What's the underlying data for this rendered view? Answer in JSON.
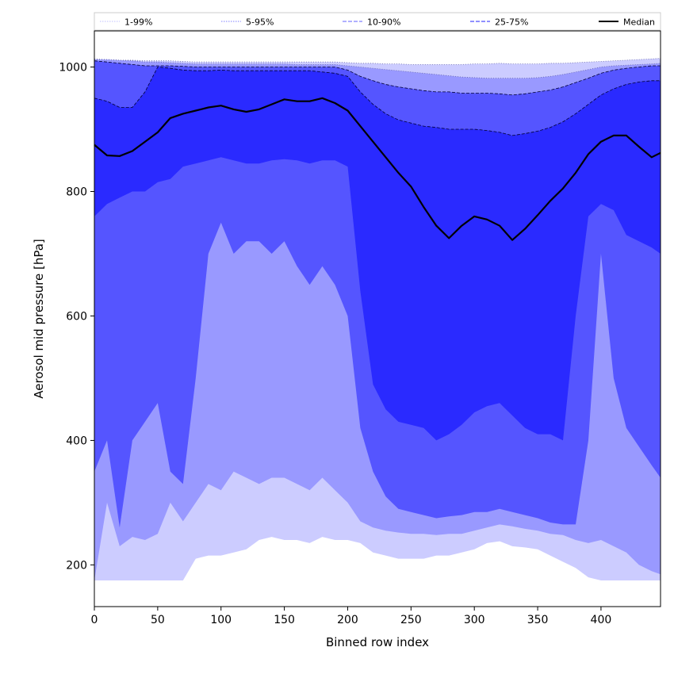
{
  "chart_data": {
    "type": "area",
    "xlabel": "Binned row index",
    "ylabel": "Aerosol mid pressure [hPa]",
    "xlim": [
      0,
      447
    ],
    "ylim": [
      133,
      1058
    ],
    "x_ticks": [
      0,
      50,
      100,
      150,
      200,
      250,
      300,
      350,
      400
    ],
    "y_ticks": [
      200,
      400,
      600,
      800,
      1000
    ],
    "legend_position": "top, spanning full width",
    "colors": {
      "band_1_99": "#ccccff",
      "band_5_95": "#9999ff",
      "band_10_90": "#5555ff",
      "band_25_75": "#2a2aff",
      "median": "#000000"
    },
    "legend": [
      {
        "label": "1-99%",
        "style": "dotted",
        "color": "#ccccff"
      },
      {
        "label": "5-95%",
        "style": "dotted",
        "color": "#9999ff"
      },
      {
        "label": "10-90%",
        "style": "dashed",
        "color": "#8080ff"
      },
      {
        "label": "25-75%",
        "style": "dashed",
        "color": "#4d4dff"
      },
      {
        "label": "Median",
        "style": "solid",
        "color": "#000000"
      }
    ],
    "x": [
      0,
      10,
      20,
      30,
      40,
      50,
      60,
      70,
      80,
      90,
      100,
      110,
      120,
      130,
      140,
      150,
      160,
      170,
      180,
      190,
      200,
      210,
      220,
      230,
      240,
      250,
      260,
      270,
      280,
      290,
      300,
      310,
      320,
      330,
      340,
      350,
      360,
      370,
      380,
      390,
      400,
      410,
      420,
      430,
      440,
      447
    ],
    "series": [
      {
        "name": "1-99%",
        "lower": [
          175,
          175,
          175,
          175,
          175,
          175,
          175,
          175,
          210,
          215,
          215,
          220,
          225,
          240,
          245,
          240,
          240,
          235,
          245,
          240,
          240,
          235,
          220,
          215,
          210,
          210,
          210,
          215,
          215,
          220,
          225,
          235,
          238,
          230,
          228,
          225,
          215,
          205,
          195,
          180,
          175,
          175,
          175,
          175,
          175,
          175
        ],
        "upper": [
          1013,
          1012,
          1011,
          1011,
          1010,
          1010,
          1010,
          1009,
          1008,
          1008,
          1008,
          1008,
          1008,
          1008,
          1008,
          1008,
          1008,
          1008,
          1008,
          1008,
          1007,
          1006,
          1006,
          1005,
          1005,
          1004,
          1004,
          1004,
          1004,
          1004,
          1005,
          1005,
          1006,
          1005,
          1005,
          1005,
          1006,
          1006,
          1007,
          1008,
          1009,
          1010,
          1011,
          1012,
          1013,
          1014
        ]
      },
      {
        "name": "5-95%",
        "lower": [
          175,
          300,
          230,
          245,
          240,
          250,
          300,
          270,
          300,
          330,
          320,
          350,
          340,
          330,
          340,
          340,
          330,
          320,
          340,
          320,
          300,
          270,
          260,
          255,
          252,
          250,
          250,
          248,
          250,
          250,
          255,
          260,
          265,
          262,
          258,
          255,
          250,
          248,
          240,
          235,
          240,
          230,
          220,
          200,
          190,
          185
        ],
        "upper": [
          1012,
          1012,
          1011,
          1010,
          1008,
          1008,
          1007,
          1006,
          1005,
          1005,
          1005,
          1005,
          1005,
          1005,
          1005,
          1005,
          1004,
          1004,
          1004,
          1004,
          1002,
          1000,
          998,
          996,
          994,
          992,
          990,
          988,
          986,
          984,
          983,
          982,
          982,
          982,
          982,
          983,
          985,
          988,
          992,
          996,
          1000,
          1002,
          1003,
          1004,
          1005,
          1006
        ]
      },
      {
        "name": "10-90%",
        "lower": [
          350,
          400,
          260,
          400,
          430,
          460,
          350,
          330,
          500,
          700,
          750,
          700,
          720,
          720,
          700,
          720,
          680,
          650,
          680,
          650,
          600,
          420,
          350,
          310,
          290,
          285,
          280,
          275,
          278,
          280,
          285,
          285,
          290,
          285,
          280,
          275,
          268,
          265,
          265,
          400,
          700,
          500,
          420,
          390,
          360,
          340
        ],
        "upper": [
          1010,
          1008,
          1006,
          1004,
          1002,
          1002,
          1002,
          1001,
          1000,
          1000,
          1000,
          1000,
          1000,
          1000,
          1000,
          1000,
          1000,
          1000,
          1000,
          1000,
          995,
          985,
          978,
          972,
          968,
          965,
          962,
          960,
          960,
          958,
          958,
          958,
          957,
          955,
          957,
          960,
          963,
          968,
          975,
          982,
          990,
          995,
          998,
          1000,
          1002,
          1002
        ]
      },
      {
        "name": "25-75%",
        "lower": [
          760,
          780,
          790,
          800,
          800,
          815,
          820,
          840,
          845,
          850,
          855,
          850,
          845,
          845,
          850,
          852,
          850,
          845,
          850,
          850,
          840,
          640,
          490,
          450,
          430,
          425,
          420,
          400,
          410,
          425,
          445,
          455,
          460,
          440,
          420,
          410,
          410,
          400,
          600,
          760,
          780,
          770,
          730,
          720,
          710,
          700
        ],
        "upper": [
          950,
          945,
          935,
          935,
          960,
          1000,
          998,
          995,
          994,
          994,
          995,
          994,
          994,
          994,
          994,
          994,
          994,
          994,
          992,
          990,
          985,
          960,
          940,
          925,
          915,
          910,
          905,
          903,
          900,
          900,
          900,
          898,
          895,
          890,
          893,
          897,
          903,
          912,
          925,
          940,
          955,
          965,
          972,
          976,
          978,
          978
        ]
      },
      {
        "name": "Median",
        "values": [
          875,
          858,
          857,
          865,
          880,
          895,
          918,
          925,
          930,
          935,
          938,
          932,
          928,
          932,
          940,
          948,
          945,
          945,
          950,
          942,
          930,
          905,
          880,
          855,
          830,
          808,
          775,
          745,
          725,
          745,
          760,
          755,
          745,
          722,
          740,
          762,
          785,
          805,
          830,
          860,
          880,
          890,
          890,
          872,
          855,
          862
        ]
      }
    ]
  }
}
